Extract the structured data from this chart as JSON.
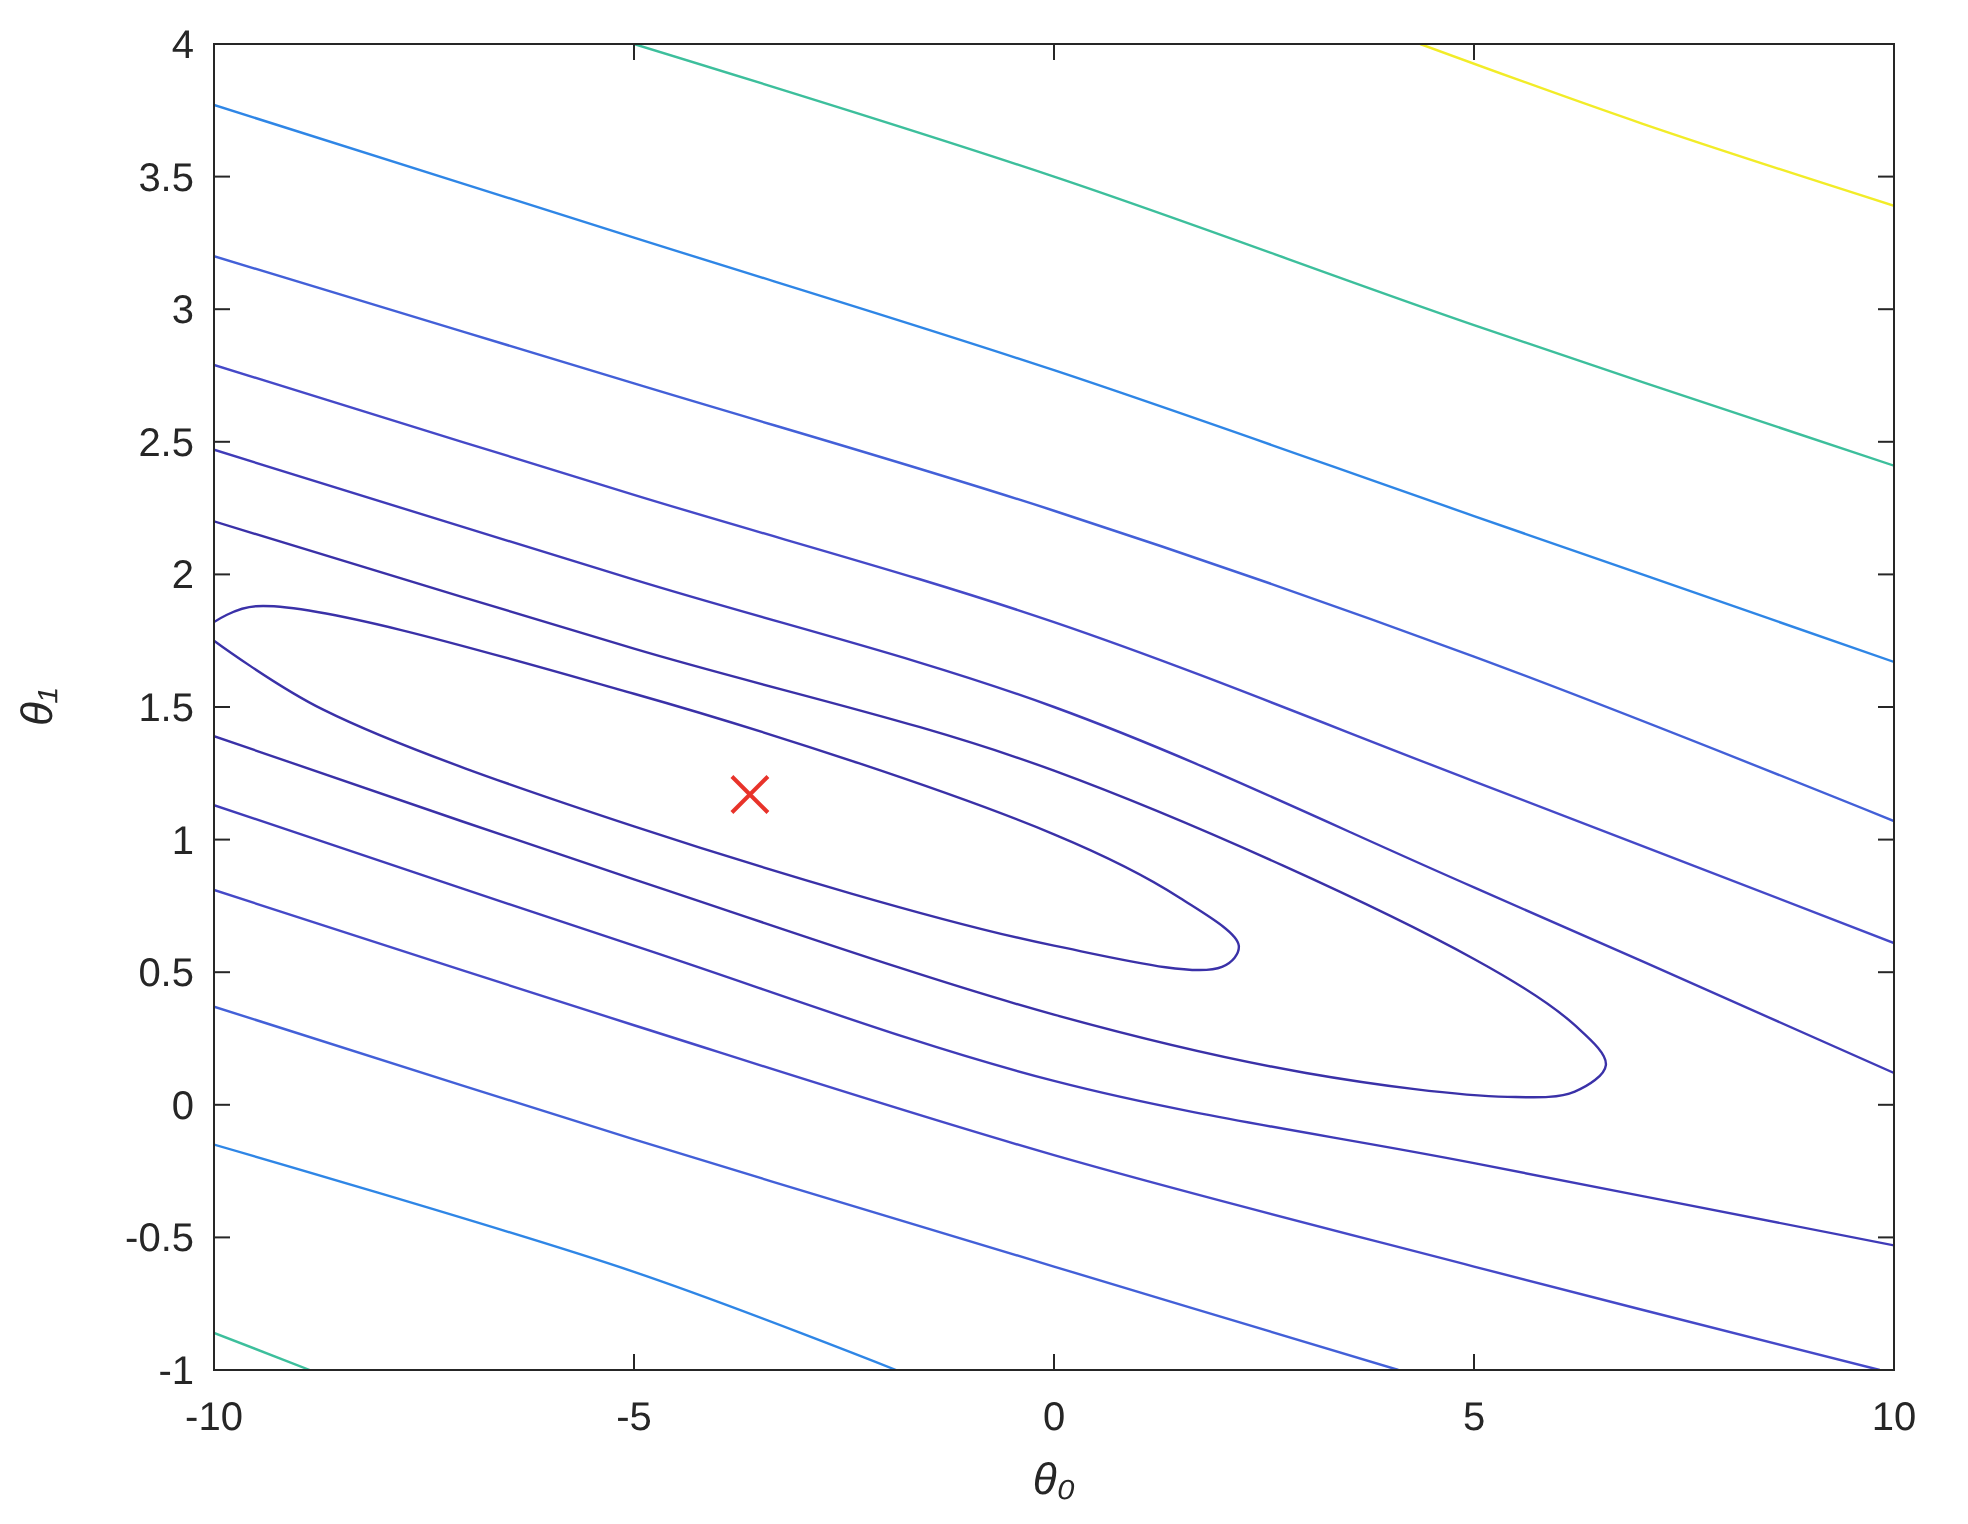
{
  "chart_data": {
    "type": "line",
    "xlabel": "θ₀",
    "ylabel": "θ₁",
    "xlim": [
      -10,
      10
    ],
    "ylim": [
      -1,
      4
    ],
    "xticks": [
      -10,
      -5,
      0,
      5,
      10
    ],
    "yticks": [
      -1,
      -0.5,
      0,
      0.5,
      1,
      1.5,
      2,
      2.5,
      3,
      3.5,
      4
    ],
    "grid": false,
    "marker": "none",
    "line_style": "solid",
    "series": [
      {
        "color": "#f2ec28",
        "x": [
          4.36,
          7,
          10
        ],
        "values": [
          4,
          3.7,
          3.39
        ]
      },
      {
        "color": "#3dbf9c",
        "x": [
          -5,
          0,
          5,
          10
        ],
        "values": [
          4,
          3.5,
          2.94,
          2.41
        ]
      },
      {
        "color": "#2f86e6",
        "x": [
          -10,
          -5,
          0,
          5,
          10
        ],
        "values": [
          3.77,
          3.27,
          2.77,
          2.22,
          1.67
        ]
      },
      {
        "color": "#4360d8",
        "x": [
          -10,
          -5,
          0,
          5,
          10
        ],
        "values": [
          3.2,
          2.72,
          2.24,
          1.69,
          1.07
        ]
      },
      {
        "color": "#4549c8",
        "x": [
          -10,
          -5,
          0,
          5,
          10
        ],
        "values": [
          2.79,
          2.3,
          1.82,
          1.22,
          0.61
        ]
      },
      {
        "color": "#3f3bb8",
        "x": [
          -10,
          -5,
          0,
          5,
          10
        ],
        "values": [
          2.47,
          1.98,
          1.5,
          0.82,
          0.12
        ]
      },
      {
        "color": "#3a31a8",
        "x": [
          -10,
          -5,
          0,
          5,
          6.2,
          6.57,
          6.2,
          5.4,
          3,
          0,
          -5,
          -10
        ],
        "values": [
          2.2,
          1.72,
          1.26,
          0.55,
          0.3,
          0.15,
          0.05,
          0.03,
          0.12,
          0.34,
          0.85,
          1.39
        ]
      },
      {
        "color": "#3a31a8",
        "x": [
          -10,
          -9.5,
          -5,
          0,
          1.5,
          2.2,
          2,
          0,
          -5,
          -8.7,
          -10
        ],
        "values": [
          1.82,
          1.88,
          1.55,
          1.02,
          0.78,
          0.6,
          0.52,
          0.6,
          1.05,
          1.49,
          1.75
        ]
      },
      {
        "color": "#3f3bb8",
        "x": [
          -10,
          -5,
          0,
          5,
          10
        ],
        "values": [
          1.13,
          0.6,
          0.09,
          -0.22,
          -0.53
        ]
      },
      {
        "color": "#4549c8",
        "x": [
          -10,
          -5,
          0,
          5,
          9.83
        ],
        "values": [
          0.81,
          0.3,
          -0.19,
          -0.61,
          -1
        ]
      },
      {
        "color": "#4360d8",
        "x": [
          -10,
          -5,
          0,
          4.1
        ],
        "values": [
          0.37,
          -0.13,
          -0.61,
          -1
        ]
      },
      {
        "color": "#2f86e6",
        "x": [
          -10,
          -5,
          -1.88
        ],
        "values": [
          -0.15,
          -0.63,
          -1
        ]
      },
      {
        "color": "#3dbf9c",
        "x": [
          -10,
          -8.86
        ],
        "values": [
          -0.86,
          -1
        ]
      },
      {
        "type": "scatter",
        "marker": "cross",
        "color": "#e8332a",
        "x": [
          -3.62
        ],
        "values": [
          1.17
        ]
      }
    ]
  }
}
